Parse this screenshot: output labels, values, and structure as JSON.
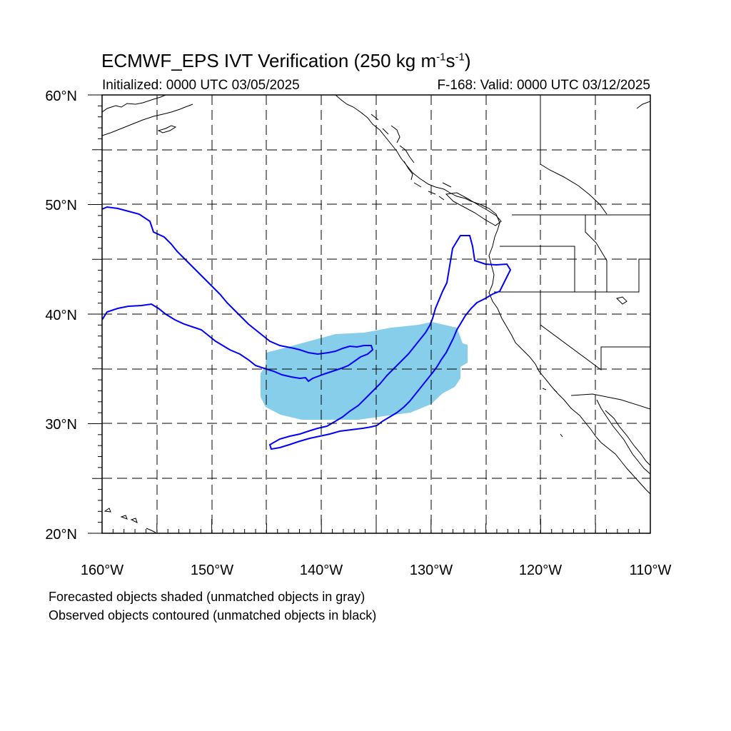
{
  "title": {
    "main": "ECMWF_EPS IVT Verification (250 kg m",
    "exp1": "-1",
    "mid": "s",
    "exp2": "-1",
    "end": ")"
  },
  "subtitle": {
    "initialized": "Initialized: 0000 UTC 03/05/2025",
    "valid": "F-168: Valid: 0000 UTC 03/12/2025"
  },
  "axes": {
    "lon_range": [
      -160,
      -110
    ],
    "lat_range": [
      20,
      60
    ],
    "lon_labels": [
      "160°W",
      "150°W",
      "140°W",
      "130°W",
      "120°W",
      "110°W"
    ],
    "lat_labels": [
      "60°N",
      "50°N",
      "40°N",
      "30°N",
      "20°N"
    ],
    "gridlines": "dashed every 5 degrees"
  },
  "legend": {
    "line1": "Forecasted objects shaded (unmatched objects in gray)",
    "line2": "Observed objects contoured (unmatched objects in black)"
  },
  "colors": {
    "forecast_fill": "#87ceeb",
    "observed_contour": "#0000ff",
    "coastline": "#000000"
  },
  "map_data": {
    "projection": "cylindrical equidistant",
    "forecast_object": {
      "description_region_lon": [
        -145.5,
        -127.5
      ],
      "description_region_lat": [
        30.3,
        39.3
      ]
    },
    "observed_objects": 2
  }
}
